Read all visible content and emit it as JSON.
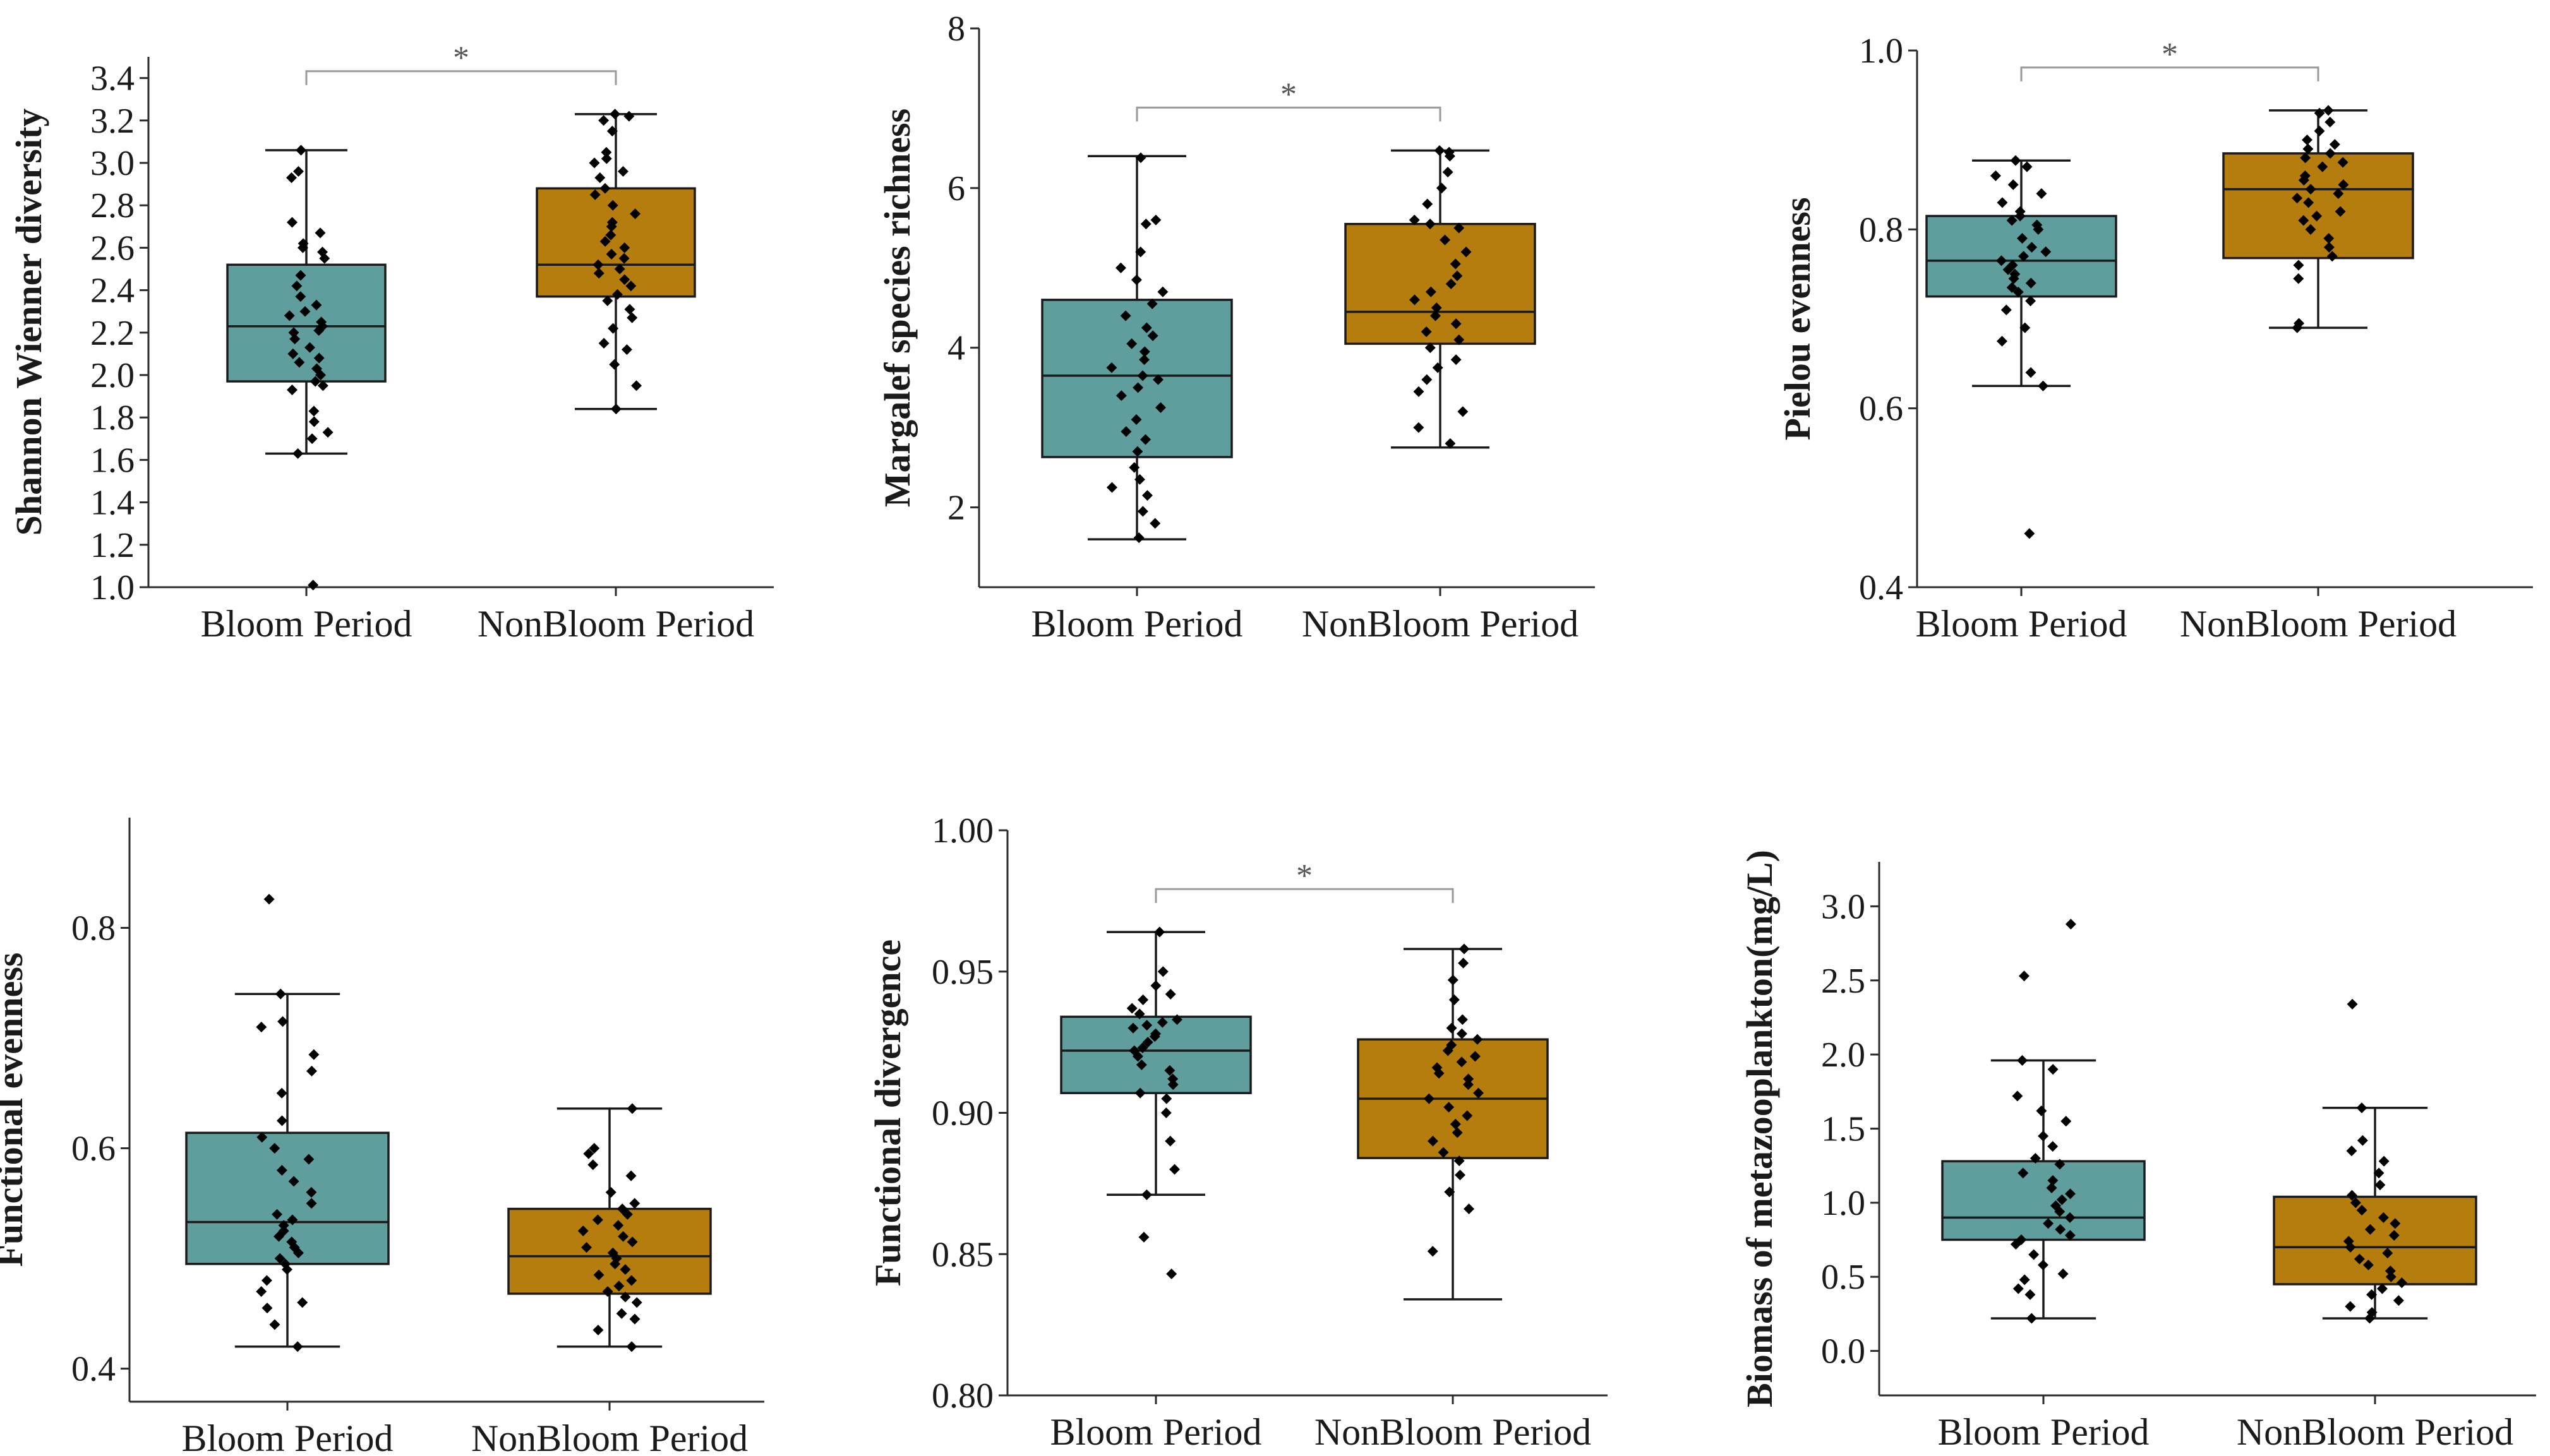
{
  "colors": {
    "bloom": "#5f9e9c",
    "nonbloom": "#b57d0e"
  },
  "chart_data": [
    {
      "type": "box",
      "title": "",
      "ylabel": "Shannon Wienner diversity",
      "ylim": [
        1.0,
        3.5
      ],
      "yticks": [
        1.0,
        1.2,
        1.4,
        1.6,
        1.8,
        2.0,
        2.2,
        2.4,
        2.6,
        2.8,
        3.0,
        3.2,
        3.4
      ],
      "ytick_decimals": 1,
      "categories": [
        "Bloom Period",
        "NonBloom Period"
      ],
      "significance": "*",
      "series": [
        {
          "name": "Bloom Period",
          "whisker_low": 1.63,
          "q1": 1.97,
          "median": 2.23,
          "q3": 2.52,
          "whisker_high": 3.06,
          "points": [
            1.01,
            1.63,
            1.7,
            1.73,
            1.78,
            1.83,
            1.93,
            1.95,
            1.97,
            2.0,
            2.03,
            2.06,
            2.08,
            2.1,
            2.13,
            2.17,
            2.2,
            2.21,
            2.23,
            2.25,
            2.28,
            2.3,
            2.33,
            2.37,
            2.42,
            2.47,
            2.55,
            2.58,
            2.6,
            2.62,
            2.67,
            2.72,
            2.93,
            2.96,
            3.06
          ]
        },
        {
          "name": "NonBloom Period",
          "whisker_low": 1.84,
          "q1": 2.37,
          "median": 2.52,
          "q3": 2.88,
          "whisker_high": 3.23,
          "points": [
            1.84,
            1.95,
            2.05,
            2.12,
            2.15,
            2.22,
            2.27,
            2.31,
            2.35,
            2.38,
            2.42,
            2.45,
            2.48,
            2.5,
            2.52,
            2.55,
            2.57,
            2.6,
            2.63,
            2.66,
            2.7,
            2.72,
            2.76,
            2.8,
            2.85,
            2.88,
            2.93,
            2.96,
            3.0,
            3.02,
            3.05,
            3.15,
            3.2,
            3.22,
            3.23
          ]
        }
      ]
    },
    {
      "type": "box",
      "title": "",
      "ylabel": "Margalef species richness",
      "ylim": [
        1.0,
        8.0
      ],
      "yticks": [
        2,
        4,
        6,
        8
      ],
      "ytick_decimals": 0,
      "categories": [
        "Bloom Period",
        "NonBloom Period"
      ],
      "significance": "*",
      "series": [
        {
          "name": "Bloom Period",
          "whisker_low": 1.6,
          "q1": 2.63,
          "median": 3.65,
          "q3": 4.6,
          "whisker_high": 6.4,
          "points": [
            1.62,
            1.8,
            1.95,
            2.15,
            2.25,
            2.35,
            2.5,
            2.7,
            2.85,
            2.95,
            3.1,
            3.25,
            3.4,
            3.5,
            3.6,
            3.65,
            3.75,
            3.85,
            3.95,
            4.05,
            4.15,
            4.25,
            4.4,
            4.55,
            4.7,
            4.85,
            5.0,
            5.2,
            5.55,
            5.6,
            6.38
          ]
        },
        {
          "name": "NonBloom Period",
          "whisker_low": 2.75,
          "q1": 4.05,
          "median": 4.45,
          "q3": 5.55,
          "whisker_high": 6.47,
          "points": [
            2.8,
            3.0,
            3.2,
            3.45,
            3.6,
            3.75,
            3.85,
            4.0,
            4.1,
            4.2,
            4.3,
            4.4,
            4.5,
            4.6,
            4.7,
            4.8,
            4.9,
            5.05,
            5.2,
            5.35,
            5.5,
            5.55,
            5.6,
            5.8,
            6.0,
            6.2,
            6.4,
            6.45,
            6.47
          ]
        }
      ]
    },
    {
      "type": "box",
      "title": "",
      "ylabel": "Pielou evenness",
      "ylim": [
        0.4,
        1.0
      ],
      "yticks": [
        0.4,
        0.6,
        0.8,
        1.0
      ],
      "ytick_decimals": 1,
      "categories": [
        "Bloom Period",
        "NonBloom Period"
      ],
      "significance": "*",
      "series": [
        {
          "name": "Bloom Period",
          "whisker_low": 0.625,
          "q1": 0.725,
          "median": 0.765,
          "q3": 0.815,
          "whisker_high": 0.877,
          "points": [
            0.46,
            0.625,
            0.64,
            0.675,
            0.69,
            0.71,
            0.72,
            0.73,
            0.735,
            0.74,
            0.745,
            0.75,
            0.755,
            0.76,
            0.765,
            0.77,
            0.775,
            0.78,
            0.79,
            0.8,
            0.805,
            0.81,
            0.815,
            0.82,
            0.83,
            0.84,
            0.85,
            0.86,
            0.87,
            0.877
          ]
        },
        {
          "name": "NonBloom Period",
          "whisker_low": 0.69,
          "q1": 0.768,
          "median": 0.845,
          "q3": 0.885,
          "whisker_high": 0.933,
          "points": [
            0.69,
            0.695,
            0.745,
            0.76,
            0.77,
            0.78,
            0.79,
            0.8,
            0.81,
            0.815,
            0.82,
            0.83,
            0.835,
            0.84,
            0.845,
            0.85,
            0.855,
            0.86,
            0.87,
            0.875,
            0.88,
            0.885,
            0.89,
            0.895,
            0.9,
            0.91,
            0.92,
            0.93,
            0.933
          ]
        }
      ]
    },
    {
      "type": "box",
      "title": "",
      "ylabel": "Functional evenness",
      "ylim": [
        0.37,
        0.9
      ],
      "yticks": [
        0.4,
        0.6,
        0.8
      ],
      "ytick_decimals": 1,
      "categories": [
        "Bloom Period",
        "NonBloom Period"
      ],
      "significance": "",
      "series": [
        {
          "name": "Bloom Period",
          "whisker_low": 0.42,
          "q1": 0.495,
          "median": 0.533,
          "q3": 0.614,
          "whisker_high": 0.74,
          "points": [
            0.42,
            0.44,
            0.455,
            0.46,
            0.47,
            0.48,
            0.49,
            0.495,
            0.5,
            0.505,
            0.51,
            0.515,
            0.52,
            0.525,
            0.53,
            0.535,
            0.54,
            0.55,
            0.56,
            0.57,
            0.58,
            0.59,
            0.6,
            0.61,
            0.625,
            0.65,
            0.67,
            0.685,
            0.71,
            0.715,
            0.74,
            0.826
          ]
        },
        {
          "name": "NonBloom Period",
          "whisker_low": 0.42,
          "q1": 0.468,
          "median": 0.502,
          "q3": 0.545,
          "whisker_high": 0.636,
          "points": [
            0.42,
            0.435,
            0.445,
            0.45,
            0.46,
            0.465,
            0.47,
            0.475,
            0.48,
            0.485,
            0.49,
            0.495,
            0.5,
            0.505,
            0.51,
            0.515,
            0.52,
            0.525,
            0.53,
            0.535,
            0.54,
            0.545,
            0.55,
            0.56,
            0.575,
            0.585,
            0.595,
            0.6,
            0.636
          ]
        }
      ]
    },
    {
      "type": "box",
      "title": "",
      "ylabel": "Functional divergence",
      "ylim": [
        0.8,
        1.0
      ],
      "yticks": [
        0.8,
        0.85,
        0.9,
        0.95,
        1.0
      ],
      "ytick_decimals": 2,
      "categories": [
        "Bloom Period",
        "NonBloom Period"
      ],
      "significance": "*",
      "series": [
        {
          "name": "Bloom Period",
          "whisker_low": 0.871,
          "q1": 0.907,
          "median": 0.922,
          "q3": 0.934,
          "whisker_high": 0.964,
          "points": [
            0.843,
            0.856,
            0.871,
            0.88,
            0.89,
            0.9,
            0.905,
            0.907,
            0.91,
            0.912,
            0.915,
            0.917,
            0.92,
            0.922,
            0.923,
            0.925,
            0.927,
            0.928,
            0.93,
            0.931,
            0.932,
            0.933,
            0.935,
            0.937,
            0.94,
            0.942,
            0.945,
            0.95,
            0.964
          ]
        },
        {
          "name": "NonBloom Period",
          "whisker_low": 0.834,
          "q1": 0.884,
          "median": 0.905,
          "q3": 0.926,
          "whisker_high": 0.958,
          "points": [
            0.851,
            0.866,
            0.872,
            0.878,
            0.883,
            0.886,
            0.89,
            0.893,
            0.896,
            0.899,
            0.902,
            0.905,
            0.907,
            0.91,
            0.912,
            0.914,
            0.916,
            0.918,
            0.92,
            0.922,
            0.924,
            0.926,
            0.928,
            0.93,
            0.933,
            0.94,
            0.947,
            0.953,
            0.958
          ]
        }
      ]
    },
    {
      "type": "box",
      "title": "",
      "ylabel": "Biomass of metazooplankton(mg/L)",
      "ylim": [
        -0.3,
        3.3
      ],
      "yticks": [
        0.0,
        0.5,
        1.0,
        1.5,
        2.0,
        2.5,
        3.0
      ],
      "ytick_decimals": 1,
      "categories": [
        "Bloom Period",
        "NonBloom Period"
      ],
      "significance": "",
      "series": [
        {
          "name": "Bloom Period",
          "whisker_low": 0.22,
          "q1": 0.75,
          "median": 0.9,
          "q3": 1.28,
          "whisker_high": 1.96,
          "points": [
            0.22,
            0.38,
            0.42,
            0.48,
            0.52,
            0.58,
            0.65,
            0.72,
            0.75,
            0.78,
            0.82,
            0.86,
            0.9,
            0.94,
            0.98,
            1.02,
            1.06,
            1.1,
            1.15,
            1.2,
            1.26,
            1.3,
            1.38,
            1.45,
            1.55,
            1.62,
            1.72,
            1.9,
            1.96,
            2.53,
            2.88
          ]
        },
        {
          "name": "NonBloom Period",
          "whisker_low": 0.22,
          "q1": 0.45,
          "median": 0.7,
          "q3": 1.04,
          "whisker_high": 1.64,
          "points": [
            0.22,
            0.26,
            0.3,
            0.34,
            0.38,
            0.42,
            0.46,
            0.5,
            0.54,
            0.58,
            0.62,
            0.66,
            0.7,
            0.74,
            0.78,
            0.82,
            0.86,
            0.9,
            0.95,
            1.0,
            1.05,
            1.12,
            1.2,
            1.28,
            1.35,
            1.42,
            1.64,
            2.34
          ]
        }
      ]
    }
  ]
}
